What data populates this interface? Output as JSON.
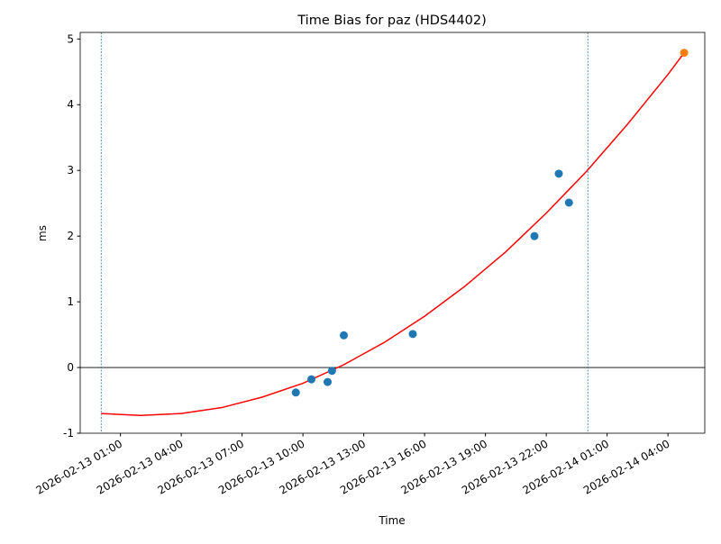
{
  "chart_data": {
    "type": "line",
    "title": "Time Bias for paz (HDS4402)",
    "x_label": "Time",
    "y_label": "ms",
    "xlim": [
      "2026-02-12 23:01",
      "2026-02-14 05:49"
    ],
    "xticks": [
      "2026-02-13 01:00",
      "2026-02-13 04:00",
      "2026-02-13 07:00",
      "2026-02-13 10:00",
      "2026-02-13 13:00",
      "2026-02-13 16:00",
      "2026-02-13 19:00",
      "2026-02-13 22:00",
      "2026-02-14 01:00",
      "2026-02-14 04:00"
    ],
    "ylim": [
      -1,
      5.1
    ],
    "yticks": [
      -1,
      0,
      1,
      2,
      3,
      4,
      5
    ],
    "hline": 0,
    "hline_color": "#000000",
    "vlines": [
      "2026-02-13 00:03",
      "2026-02-14 00:03"
    ],
    "vline_color": "#1f77b4",
    "series": [
      {
        "type": "line",
        "color": "#ff0000",
        "x": [
          "2026-02-13 00:03",
          "2026-02-13 02:00",
          "2026-02-13 04:00",
          "2026-02-13 06:00",
          "2026-02-13 08:00",
          "2026-02-13 10:00",
          "2026-02-13 12:00",
          "2026-02-13 14:00",
          "2026-02-13 16:00",
          "2026-02-13 18:00",
          "2026-02-13 20:00",
          "2026-02-13 22:00",
          "2026-02-14 00:00",
          "2026-02-14 02:00",
          "2026-02-14 04:00",
          "2026-02-14 04:48"
        ],
        "values": [
          -0.7,
          -0.73,
          -0.7,
          -0.61,
          -0.45,
          -0.24,
          0.04,
          0.38,
          0.78,
          1.24,
          1.76,
          2.35,
          2.99,
          3.7,
          4.46,
          4.79
        ]
      },
      {
        "type": "scatter",
        "color": "#1f77b4",
        "x": [
          "2026-02-13 09:39",
          "2026-02-13 10:25",
          "2026-02-13 11:13",
          "2026-02-13 11:26",
          "2026-02-13 12:01",
          "2026-02-13 15:25",
          "2026-02-13 21:25",
          "2026-02-13 22:37",
          "2026-02-13 23:07"
        ],
        "values": [
          -0.38,
          -0.18,
          -0.22,
          -0.05,
          0.49,
          0.51,
          2.0,
          2.95,
          2.51
        ]
      },
      {
        "type": "scatter",
        "color": "#ff7f0e",
        "x": [
          "2026-02-14 04:48"
        ],
        "values": [
          4.79
        ]
      }
    ]
  }
}
